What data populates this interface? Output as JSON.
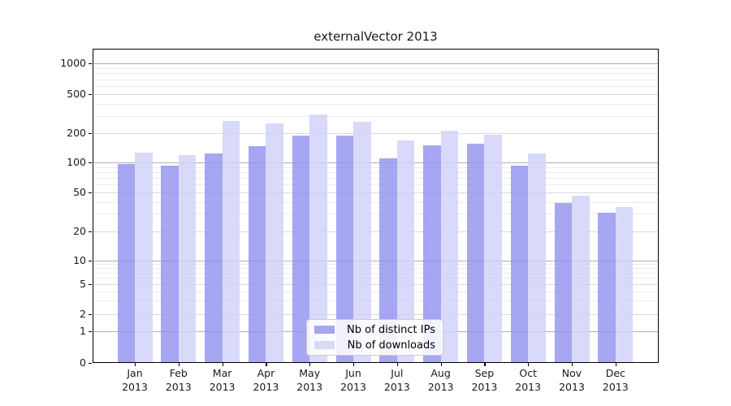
{
  "title": "externalVector 2013",
  "colors": {
    "bar_distinct_ips": "rgba(144,144,239,0.8)",
    "bar_downloads": "rgba(208,208,248,0.8)",
    "legend_swatch_ips": "#a6a6ef",
    "legend_swatch_downloads": "#d9d9f9",
    "grid_decade": "#b0b0b0",
    "grid_major": "#d9d9d9",
    "grid_minor": "#ececec",
    "axis": "#000000",
    "text": "#1a1a1a"
  },
  "legend": {
    "items": [
      {
        "label": "Nb of distinct IPs"
      },
      {
        "label": "Nb of downloads"
      }
    ]
  },
  "chart_data": {
    "type": "bar",
    "title": "externalVector 2013",
    "categories": [
      "Jan 2013",
      "Feb 2013",
      "Mar 2013",
      "Apr 2013",
      "May 2013",
      "Jun 2013",
      "Jul 2013",
      "Aug 2013",
      "Sep 2013",
      "Oct 2013",
      "Nov 2013",
      "Dec 2013"
    ],
    "series": [
      {
        "name": "Nb of distinct IPs",
        "values": [
          97,
          92,
          124,
          148,
          190,
          189,
          110,
          149,
          155,
          92,
          39,
          31
        ]
      },
      {
        "name": "Nb of downloads",
        "values": [
          127,
          120,
          268,
          250,
          308,
          262,
          168,
          212,
          193,
          124,
          46,
          35
        ]
      }
    ],
    "yscale": "log-with-zero",
    "y_ticks": [
      0,
      1,
      2,
      5,
      10,
      20,
      50,
      100,
      200,
      500,
      1000
    ],
    "ylim": [
      0,
      1400
    ],
    "grid": "on",
    "legend_position": "lower-center"
  }
}
